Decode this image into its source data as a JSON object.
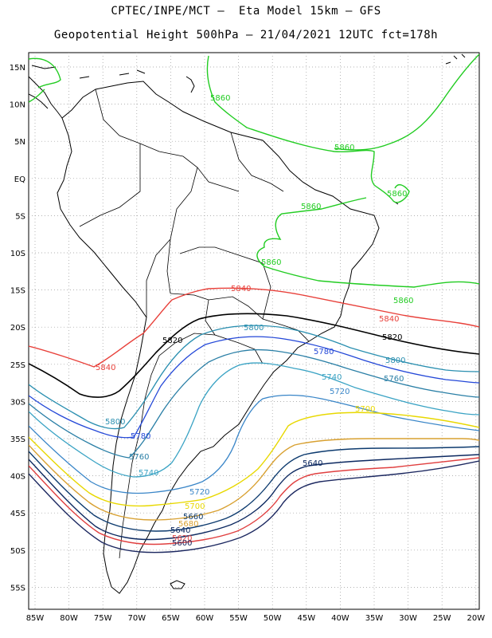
{
  "header": {
    "line1": "CPTEC/INPE/MCT –  Eta Model 15km – GFS",
    "line2": "Geopotential Height 500hPa – 21/04/2021 12UTC fct=178h"
  },
  "axes": {
    "lat_labels": [
      "15N",
      "10N",
      "5N",
      "EQ",
      "5S",
      "10S",
      "15S",
      "20S",
      "25S",
      "30S",
      "35S",
      "40S",
      "45S",
      "50S",
      "55S"
    ],
    "lon_labels": [
      "85W",
      "80W",
      "75W",
      "70W",
      "65W",
      "60W",
      "55W",
      "50W",
      "45W",
      "40W",
      "35W",
      "30W",
      "25W",
      "20W"
    ]
  },
  "contours": [
    {
      "value": "5860",
      "color": "#22cc22",
      "labels": [
        "5860",
        "5860",
        "5860",
        "5860",
        "5860",
        "5860"
      ]
    },
    {
      "value": "5840",
      "color": "#e8403a",
      "labels": [
        "5840",
        "5840",
        "5840"
      ]
    },
    {
      "value": "5820",
      "color": "#000000",
      "labels": [
        "5820",
        "5820"
      ]
    },
    {
      "value": "5800",
      "color": "#2a8fb0",
      "labels": [
        "5800",
        "5800",
        "5800"
      ]
    },
    {
      "value": "5780",
      "color": "#2448d8",
      "labels": [
        "5780",
        "5780"
      ]
    },
    {
      "value": "5760",
      "color": "#2a7fa6",
      "labels": [
        "5760",
        "5760"
      ]
    },
    {
      "value": "5740",
      "color": "#3aa3c4",
      "labels": [
        "5740",
        "5740"
      ]
    },
    {
      "value": "5720",
      "color": "#3a86c8",
      "labels": [
        "5720",
        "5720"
      ]
    },
    {
      "value": "5700",
      "color": "#e8d800",
      "labels": [
        "5700",
        "5700"
      ]
    },
    {
      "value": "5680",
      "color": "#d8a030",
      "labels": [
        "5680"
      ]
    },
    {
      "value": "5660",
      "color": "#0c3a6e",
      "labels": [
        "5660"
      ]
    },
    {
      "value": "5640",
      "color": "#0c2860",
      "labels": [
        "5640",
        "5640"
      ]
    },
    {
      "value": "5620",
      "color": "#e04040",
      "labels": [
        "5620"
      ]
    },
    {
      "value": "5600",
      "color": "#1c2860",
      "labels": [
        "5600"
      ]
    }
  ]
}
